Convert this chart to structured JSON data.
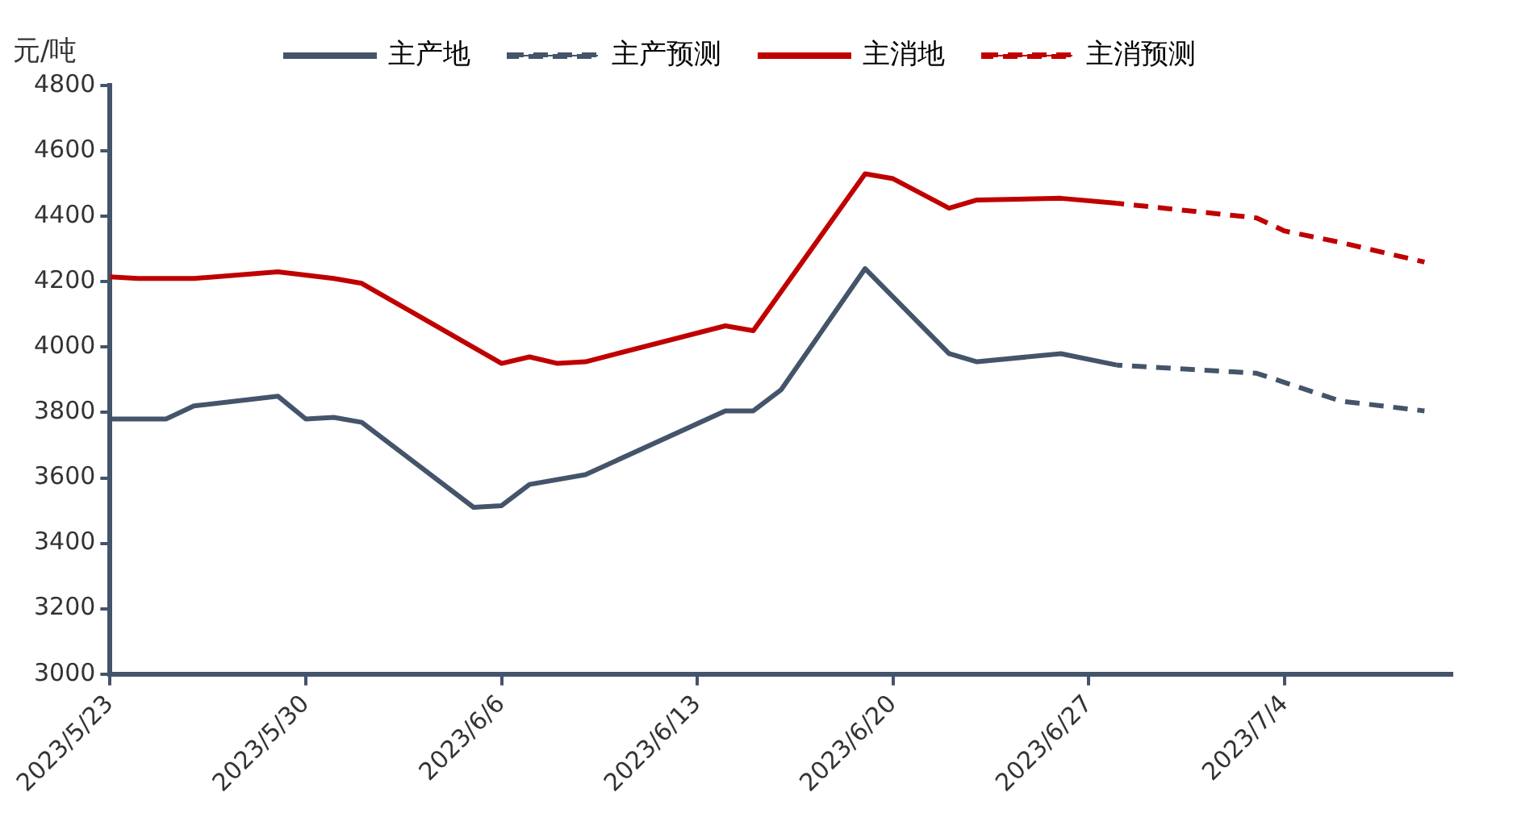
{
  "chart_data": {
    "type": "line",
    "ylabel": "元/吨",
    "legend": "top",
    "grid": false,
    "marker": "none",
    "xlim": [
      "2023-05-23",
      "2023-07-10"
    ],
    "xticks": [
      {
        "value": "2023-05-23",
        "label": "2023/5/23"
      },
      {
        "value": "2023-05-30",
        "label": "2023/5/30"
      },
      {
        "value": "2023-06-06",
        "label": "2023/6/6"
      },
      {
        "value": "2023-06-13",
        "label": "2023/6/13"
      },
      {
        "value": "2023-06-20",
        "label": "2023/6/20"
      },
      {
        "value": "2023-06-27",
        "label": "2023/6/27"
      },
      {
        "value": "2023-07-04",
        "label": "2023/7/4"
      }
    ],
    "ylim": [
      3000,
      4800
    ],
    "yticks": [
      3000,
      3200,
      3400,
      3600,
      3800,
      4000,
      4200,
      4400,
      4600,
      4800
    ],
    "series": [
      {
        "name": "主产地",
        "color": "#44546a",
        "line_style": "solid",
        "x": [
          "2023-05-23",
          "2023-05-25",
          "2023-05-26",
          "2023-05-29",
          "2023-05-30",
          "2023-05-31",
          "2023-06-01",
          "2023-06-05",
          "2023-06-06",
          "2023-06-07",
          "2023-06-09",
          "2023-06-14",
          "2023-06-15",
          "2023-06-16",
          "2023-06-19",
          "2023-06-22",
          "2023-06-23",
          "2023-06-26",
          "2023-06-28"
        ],
        "values": [
          3780,
          3780,
          3820,
          3850,
          3780,
          3785,
          3770,
          3510,
          3515,
          3580,
          3610,
          3805,
          3805,
          3870,
          4240,
          3980,
          3955,
          3980,
          3945
        ]
      },
      {
        "name": "主产预测",
        "color": "#44546a",
        "line_style": "dashed",
        "x": [
          "2023-06-28",
          "2023-07-03",
          "2023-07-06",
          "2023-07-09"
        ],
        "values": [
          3945,
          3920,
          3835,
          3805
        ]
      },
      {
        "name": "主消地",
        "color": "#c00000",
        "line_style": "solid",
        "x": [
          "2023-05-23",
          "2023-05-24",
          "2023-05-26",
          "2023-05-29",
          "2023-05-31",
          "2023-06-01",
          "2023-06-06",
          "2023-06-07",
          "2023-06-08",
          "2023-06-09",
          "2023-06-14",
          "2023-06-15",
          "2023-06-19",
          "2023-06-20",
          "2023-06-22",
          "2023-06-23",
          "2023-06-26",
          "2023-06-28"
        ],
        "values": [
          4215,
          4210,
          4210,
          4230,
          4210,
          4195,
          3950,
          3970,
          3950,
          3955,
          4065,
          4050,
          4530,
          4515,
          4425,
          4450,
          4455,
          4440
        ]
      },
      {
        "name": "主消预测",
        "color": "#c00000",
        "line_style": "dashed",
        "x": [
          "2023-06-28",
          "2023-07-03",
          "2023-07-04",
          "2023-07-06",
          "2023-07-09"
        ],
        "values": [
          4440,
          4395,
          4355,
          4320,
          4260
        ]
      }
    ]
  }
}
